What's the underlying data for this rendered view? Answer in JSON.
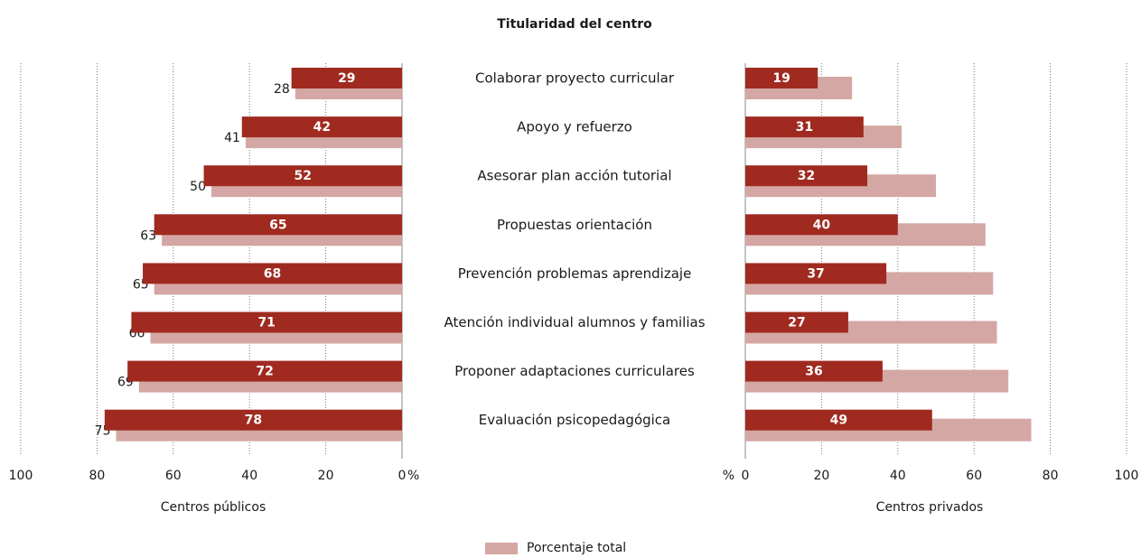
{
  "chart_data": {
    "type": "bar",
    "title": "Titularidad del centro",
    "categories": [
      "Colaborar proyecto curricular",
      "Apoyo y refuerzo",
      "Asesorar plan acción tutorial",
      "Propuestas orientación",
      "Prevención problemas aprendizaje",
      "Atención individual alumnos y familias",
      "Proponer adaptaciones curriculares",
      "Evaluación psicopedagógica"
    ],
    "xlim": [
      0,
      100
    ],
    "xticks": [
      0,
      20,
      40,
      60,
      80,
      100
    ],
    "x_unit": "%",
    "grid": true,
    "left_label": "Centros públicos",
    "right_label": "Centros privados",
    "series": [
      {
        "name": "Porcentaje total",
        "color": "#d4a7a4",
        "values": [
          28,
          41,
          50,
          63,
          65,
          66,
          69,
          75
        ]
      },
      {
        "side": "left",
        "color": "#a02a20",
        "values": [
          29,
          42,
          52,
          65,
          68,
          71,
          72,
          78
        ]
      },
      {
        "side": "right",
        "color": "#a02a20",
        "values": [
          19,
          31,
          32,
          40,
          37,
          27,
          36,
          49
        ]
      }
    ]
  }
}
